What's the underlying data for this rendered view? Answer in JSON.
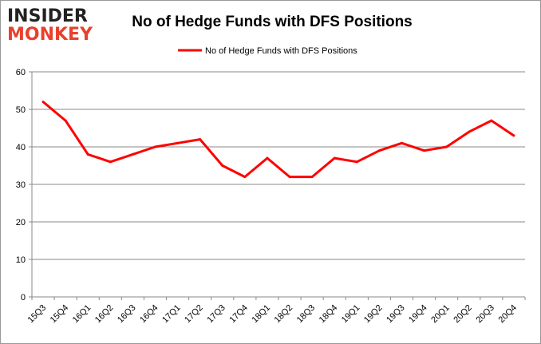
{
  "logo": {
    "line1": "INSIDER",
    "line2": "MONKEY"
  },
  "chart_data": {
    "type": "line",
    "title": "No of Hedge Funds with DFS Positions",
    "categories": [
      "15Q3",
      "15Q4",
      "16Q1",
      "16Q2",
      "16Q3",
      "16Q4",
      "17Q1",
      "17Q2",
      "17Q3",
      "17Q4",
      "18Q1",
      "18Q2",
      "18Q3",
      "18Q4",
      "19Q1",
      "19Q2",
      "19Q3",
      "19Q4",
      "20Q1",
      "20Q2",
      "20Q3",
      "20Q4"
    ],
    "series": [
      {
        "name": "No of Hedge Funds with DFS Positions",
        "color": "#ff0000",
        "values": [
          52,
          47,
          38,
          36,
          38,
          40,
          41,
          42,
          35,
          32,
          37,
          32,
          32,
          37,
          36,
          39,
          41,
          39,
          40,
          44,
          47,
          43
        ]
      }
    ],
    "ylim": [
      0,
      60
    ],
    "yticks": [
      0,
      10,
      20,
      30,
      40,
      50,
      60
    ],
    "grid": true,
    "legend": "top-center",
    "xlabel": "",
    "ylabel": ""
  }
}
